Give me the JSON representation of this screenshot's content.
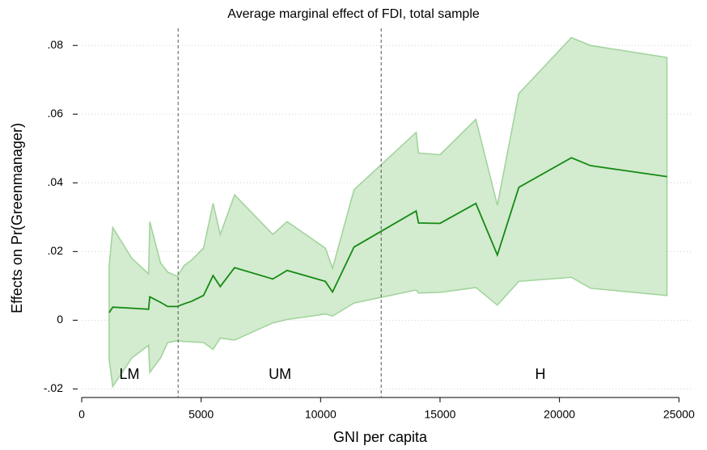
{
  "chart_data": {
    "type": "band-line",
    "title": "Average marginal effect of FDI, total sample",
    "x_label": "GNI per capita",
    "y_label": "Effects on Pr(Greenmanager)",
    "x": [
      1150,
      1300,
      2100,
      2800,
      2850,
      3300,
      3600,
      4000,
      4300,
      4600,
      5100,
      5500,
      5800,
      6400,
      8000,
      8600,
      10200,
      10500,
      11400,
      14000,
      14100,
      15000,
      16500,
      17400,
      18300,
      20500,
      21300,
      24500
    ],
    "center": [
      0.0022,
      0.0038,
      0.0035,
      0.0032,
      0.0068,
      0.0052,
      0.004,
      0.004,
      0.0048,
      0.0055,
      0.0072,
      0.013,
      0.0098,
      0.0153,
      0.012,
      0.0145,
      0.0113,
      0.0082,
      0.0213,
      0.0318,
      0.0283,
      0.0282,
      0.034,
      0.019,
      0.0387,
      0.0473,
      0.045,
      0.0418
    ],
    "upper": [
      0.016,
      0.027,
      0.018,
      0.0135,
      0.0287,
      0.0167,
      0.014,
      0.0128,
      0.016,
      0.0175,
      0.021,
      0.034,
      0.025,
      0.0365,
      0.025,
      0.0287,
      0.021,
      0.0151,
      0.038,
      0.0547,
      0.0487,
      0.0482,
      0.0585,
      0.0335,
      0.066,
      0.0823,
      0.08,
      0.0765
    ],
    "lower": [
      -0.0115,
      -0.0193,
      -0.011,
      -0.0073,
      -0.0152,
      -0.011,
      -0.0065,
      -0.006,
      -0.0062,
      -0.0063,
      -0.0065,
      -0.0085,
      -0.0052,
      -0.0058,
      -0.0008,
      0.0002,
      0.0018,
      0.0012,
      0.005,
      0.0088,
      0.0079,
      0.0081,
      0.0095,
      0.0044,
      0.0113,
      0.0125,
      0.0093,
      0.0072
    ],
    "line_color": "#138a13",
    "band_color": "#d3ebcf",
    "band_edge_color": "#9fd39a",
    "thresholds": [
      4036,
      12536
    ],
    "regions": [
      {
        "label": "LM",
        "x": 2000
      },
      {
        "label": "UM",
        "x": 8300
      },
      {
        "label": "H",
        "x": 19200
      }
    ],
    "region_label_y": -0.016,
    "xlim": [
      0,
      25600
    ],
    "ylim": [
      -0.0225,
      0.085
    ],
    "xticks": [
      0,
      5000,
      10000,
      15000,
      20000,
      25000
    ],
    "yticks": [
      {
        "value": -0.02,
        "label": "-.02"
      },
      0,
      {
        "value": 0.02,
        "label": ".02"
      },
      {
        "value": 0.04,
        "label": ".04"
      },
      {
        "value": 0.06,
        "label": ".06"
      },
      {
        "value": 0.08,
        "label": ".08"
      }
    ],
    "grid": true
  }
}
